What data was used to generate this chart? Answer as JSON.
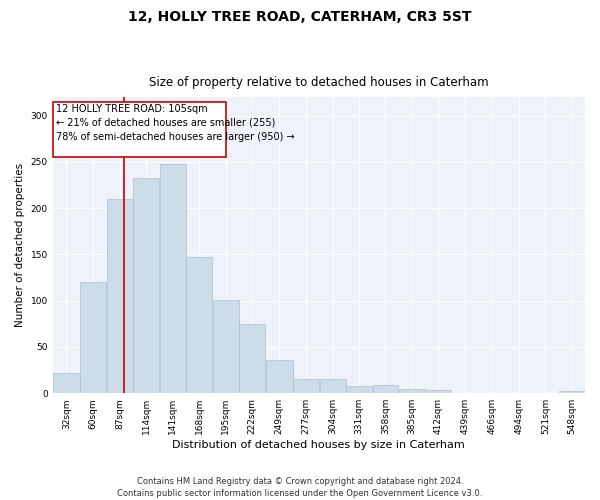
{
  "title": "12, HOLLY TREE ROAD, CATERHAM, CR3 5ST",
  "subtitle": "Size of property relative to detached houses in Caterham",
  "xlabel": "Distribution of detached houses by size in Caterham",
  "ylabel": "Number of detached properties",
  "bar_color": "#ccdce8",
  "bar_edge_color": "#aabfd0",
  "background_color": "#eef2fa",
  "grid_color": "#ffffff",
  "vline_x": 105,
  "vline_color": "#cc0000",
  "annotation_box_color": "#cc0000",
  "annotation_lines": [
    "12 HOLLY TREE ROAD: 105sqm",
    "← 21% of detached houses are smaller (255)",
    "78% of semi-detached houses are larger (950) →"
  ],
  "bin_edges": [
    32,
    60,
    87,
    114,
    141,
    168,
    195,
    222,
    249,
    277,
    304,
    331,
    358,
    385,
    412,
    439,
    466,
    494,
    521,
    548,
    575
  ],
  "bar_heights": [
    22,
    120,
    210,
    233,
    248,
    147,
    101,
    75,
    36,
    15,
    15,
    8,
    9,
    5,
    3,
    0,
    0,
    0,
    0,
    2
  ],
  "ylim": [
    0,
    320
  ],
  "yticks": [
    0,
    50,
    100,
    150,
    200,
    250,
    300
  ],
  "footer_text": "Contains HM Land Registry data © Crown copyright and database right 2024.\nContains public sector information licensed under the Open Government Licence v3.0.",
  "annotation_fontsize": 7.0,
  "title_fontsize": 10,
  "subtitle_fontsize": 8.5,
  "xlabel_fontsize": 8,
  "ylabel_fontsize": 7.5,
  "tick_fontsize": 6.5,
  "footer_fontsize": 6.0
}
